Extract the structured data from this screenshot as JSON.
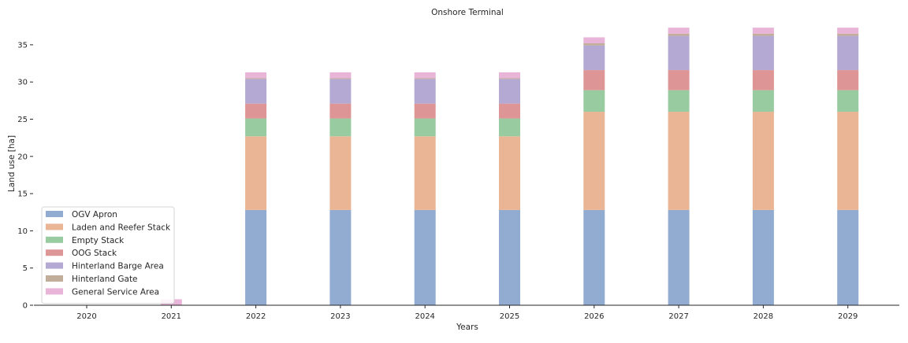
{
  "chart_data": {
    "type": "bar",
    "stacked": true,
    "title": "Onshore Terminal",
    "xlabel": "Years",
    "ylabel": "Land use [ha]",
    "categories": [
      "2020",
      "2021",
      "2022",
      "2023",
      "2024",
      "2025",
      "2026",
      "2027",
      "2028",
      "2029"
    ],
    "ylim": [
      0,
      37
    ],
    "yticks": [
      0,
      5,
      10,
      15,
      20,
      25,
      30,
      35
    ],
    "grid": false,
    "legend_position": "lower-left",
    "series": [
      {
        "name": "OGV Apron",
        "color": "#92abd0",
        "values": [
          0,
          0,
          12.8,
          12.8,
          12.8,
          12.8,
          12.8,
          12.8,
          12.8,
          12.8
        ]
      },
      {
        "name": "Laden and Reefer Stack",
        "color": "#eab595",
        "values": [
          0,
          0,
          9.9,
          9.9,
          9.9,
          9.9,
          13.2,
          13.2,
          13.2,
          13.2
        ]
      },
      {
        "name": "Empty Stack",
        "color": "#99cba1",
        "values": [
          0,
          0,
          2.4,
          2.4,
          2.4,
          2.4,
          2.9,
          2.9,
          2.9,
          2.9
        ]
      },
      {
        "name": "OOG Stack",
        "color": "#de9595",
        "values": [
          0,
          0,
          2.0,
          2.0,
          2.0,
          2.0,
          2.7,
          2.7,
          2.7,
          2.7
        ]
      },
      {
        "name": "Hinterland Barge Area",
        "color": "#b4a9d2",
        "values": [
          0,
          0,
          3.3,
          3.3,
          3.3,
          3.3,
          3.3,
          4.6,
          4.6,
          4.6
        ]
      },
      {
        "name": "Hinterland Gate",
        "color": "#c0ae9a",
        "values": [
          0,
          0,
          0.1,
          0.1,
          0.1,
          0.1,
          0.3,
          0.3,
          0.3,
          0.3
        ]
      },
      {
        "name": "General Service Area",
        "color": "#e8b4d8",
        "values": [
          0,
          0.8,
          0.8,
          0.8,
          0.8,
          0.8,
          0.8,
          0.8,
          0.8,
          0.8
        ]
      }
    ]
  }
}
